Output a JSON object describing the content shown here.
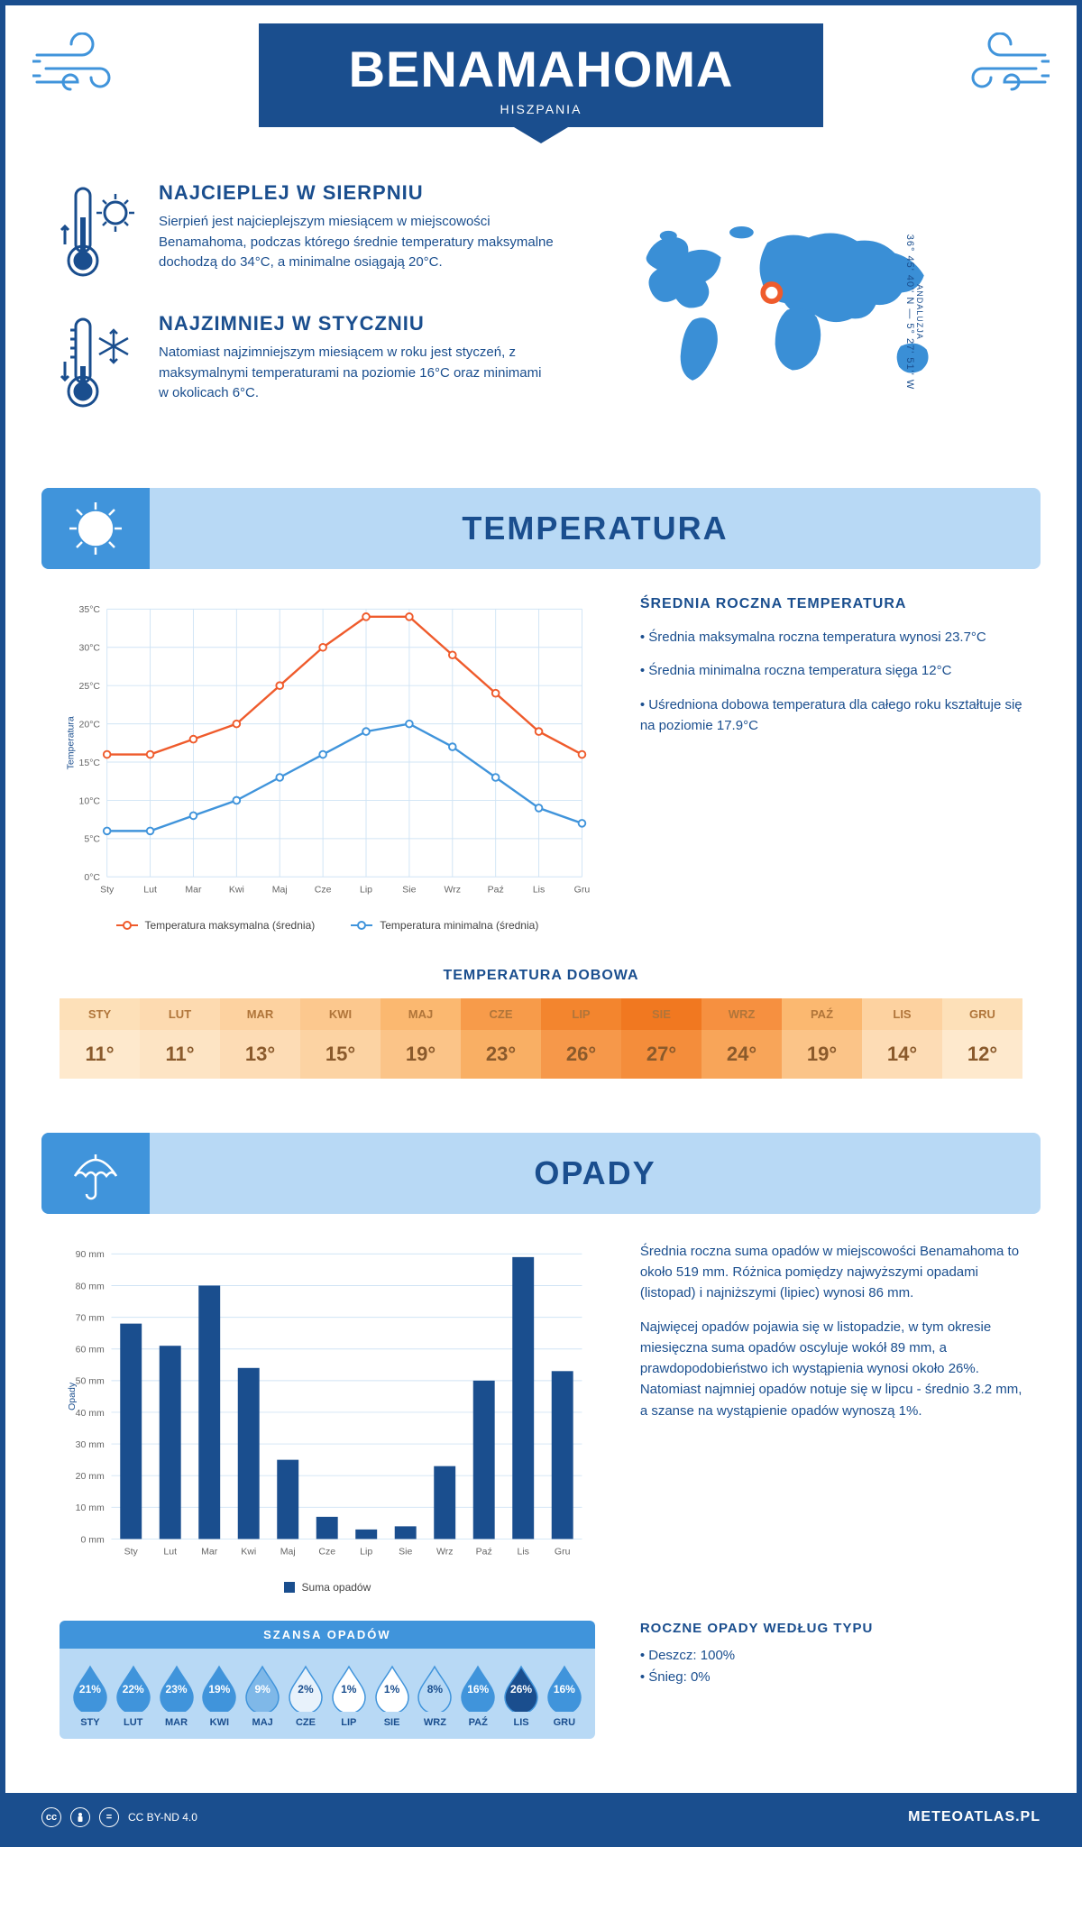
{
  "header": {
    "title": "BENAMAHOMA",
    "subtitle": "HISZPANIA"
  },
  "intro": {
    "hot": {
      "heading": "NAJCIEPLEJ W SIERPNIU",
      "text": "Sierpień jest najcieplejszym miesiącem w miejscowości Benamahoma, podczas którego średnie temperatury maksymalne dochodzą do 34°C, a minimalne osiągają 20°C."
    },
    "cold": {
      "heading": "NAJZIMNIEJ W STYCZNIU",
      "text": "Natomiast najzimniejszym miesiącem w roku jest styczeń, z maksymalnymi temperaturami na poziomie 16°C oraz minimami w okolicach 6°C."
    },
    "coords": "36° 45' 40'' N — 5° 27' 51'' W",
    "region": "ANDALUZJA"
  },
  "temperature": {
    "section_title": "TEMPERATURA",
    "chart": {
      "type": "line",
      "months": [
        "Sty",
        "Lut",
        "Mar",
        "Kwi",
        "Maj",
        "Cze",
        "Lip",
        "Sie",
        "Wrz",
        "Paź",
        "Lis",
        "Gru"
      ],
      "max_series": {
        "label": "Temperatura maksymalna (średnia)",
        "color": "#ef5b2c",
        "values": [
          16,
          16,
          18,
          20,
          25,
          30,
          34,
          34,
          29,
          24,
          19,
          16
        ]
      },
      "min_series": {
        "label": "Temperatura minimalna (średnia)",
        "color": "#4094db",
        "values": [
          6,
          6,
          8,
          10,
          13,
          16,
          19,
          20,
          17,
          13,
          9,
          7
        ]
      },
      "y_label": "Temperatura",
      "y_ticks": [
        0,
        5,
        10,
        15,
        20,
        25,
        30,
        35
      ],
      "y_tick_labels": [
        "0°C",
        "5°C",
        "10°C",
        "15°C",
        "20°C",
        "25°C",
        "30°C",
        "35°C"
      ],
      "ylim": [
        0,
        35
      ],
      "grid_color": "#d0e4f5",
      "background": "#ffffff"
    },
    "annual": {
      "heading": "ŚREDNIA ROCZNA TEMPERATURA",
      "bullets": [
        "Średnia maksymalna roczna temperatura wynosi 23.7°C",
        "Średnia minimalna roczna temperatura sięga 12°C",
        "Uśredniona dobowa temperatura dla całego roku kształtuje się na poziomie 17.9°C"
      ]
    },
    "daily": {
      "heading": "TEMPERATURA DOBOWA",
      "months": [
        "STY",
        "LUT",
        "MAR",
        "KWI",
        "MAJ",
        "CZE",
        "LIP",
        "SIE",
        "WRZ",
        "PAŹ",
        "LIS",
        "GRU"
      ],
      "values": [
        "11°",
        "11°",
        "13°",
        "15°",
        "19°",
        "23°",
        "26°",
        "27°",
        "24°",
        "19°",
        "14°",
        "12°"
      ],
      "header_colors": [
        "#fde0b8",
        "#fddab0",
        "#fdd2a0",
        "#fcc88e",
        "#fbb870",
        "#f79b4a",
        "#f3852e",
        "#f17820",
        "#f69040",
        "#fbb870",
        "#fdd2a0",
        "#fde0b8"
      ],
      "value_colors": [
        "#fee9cd",
        "#fde4c4",
        "#fddcb5",
        "#fcd3a3",
        "#fbc488",
        "#f9af64",
        "#f6984a",
        "#f48d3b",
        "#f8a559",
        "#fbc488",
        "#fddcb5",
        "#fee9cd"
      ],
      "text_color_header": "#b0753a",
      "text_color_value": "#8a5a2c"
    }
  },
  "precipitation": {
    "section_title": "OPADY",
    "chart": {
      "type": "bar",
      "months": [
        "Sty",
        "Lut",
        "Mar",
        "Kwi",
        "Maj",
        "Cze",
        "Lip",
        "Sie",
        "Wrz",
        "Paź",
        "Lis",
        "Gru"
      ],
      "values": [
        68,
        61,
        80,
        54,
        25,
        7,
        3,
        4,
        23,
        50,
        89,
        53
      ],
      "bar_color": "#1a4e8e",
      "y_label": "Opady",
      "y_ticks": [
        0,
        10,
        20,
        30,
        40,
        50,
        60,
        70,
        80,
        90
      ],
      "y_tick_labels": [
        "0 mm",
        "10 mm",
        "20 mm",
        "30 mm",
        "40 mm",
        "50 mm",
        "60 mm",
        "70 mm",
        "80 mm",
        "90 mm"
      ],
      "ylim": [
        0,
        90
      ],
      "legend_label": "Suma opadów",
      "grid_color": "#d0e4f5"
    },
    "text1": "Średnia roczna suma opadów w miejscowości Benamahoma to około 519 mm. Różnica pomiędzy najwyższymi opadami (listopad) i najniższymi (lipiec) wynosi 86 mm.",
    "text2": "Najwięcej opadów pojawia się w listopadzie, w tym okresie miesięczna suma opadów oscyluje wokół 89 mm, a prawdopodobieństwo ich wystąpienia wynosi około 26%. Natomiast najmniej opadów notuje się w lipcu - średnio 3.2 mm, a szanse na wystąpienie opadów wynoszą 1%.",
    "chance": {
      "heading": "SZANSA OPADÓW",
      "months": [
        "STY",
        "LUT",
        "MAR",
        "KWI",
        "MAJ",
        "CZE",
        "LIP",
        "SIE",
        "WRZ",
        "PAŹ",
        "LIS",
        "GRU"
      ],
      "values": [
        "21%",
        "22%",
        "23%",
        "19%",
        "9%",
        "2%",
        "1%",
        "1%",
        "8%",
        "16%",
        "26%",
        "16%"
      ],
      "fills": [
        "#4094db",
        "#4094db",
        "#4094db",
        "#4094db",
        "#7fb8e8",
        "#e8f2fb",
        "#ffffff",
        "#ffffff",
        "#b8d9f5",
        "#4094db",
        "#1a4e8e",
        "#4094db"
      ],
      "text_colors": [
        "#fff",
        "#fff",
        "#fff",
        "#fff",
        "#fff",
        "#1a4e8e",
        "#1a4e8e",
        "#1a4e8e",
        "#1a4e8e",
        "#fff",
        "#fff",
        "#fff"
      ]
    },
    "by_type": {
      "heading": "ROCZNE OPADY WEDŁUG TYPU",
      "lines": [
        "Deszcz: 100%",
        "Śnieg: 0%"
      ]
    }
  },
  "footer": {
    "license": "CC BY-ND 4.0",
    "site": "METEOATLAS.PL"
  }
}
